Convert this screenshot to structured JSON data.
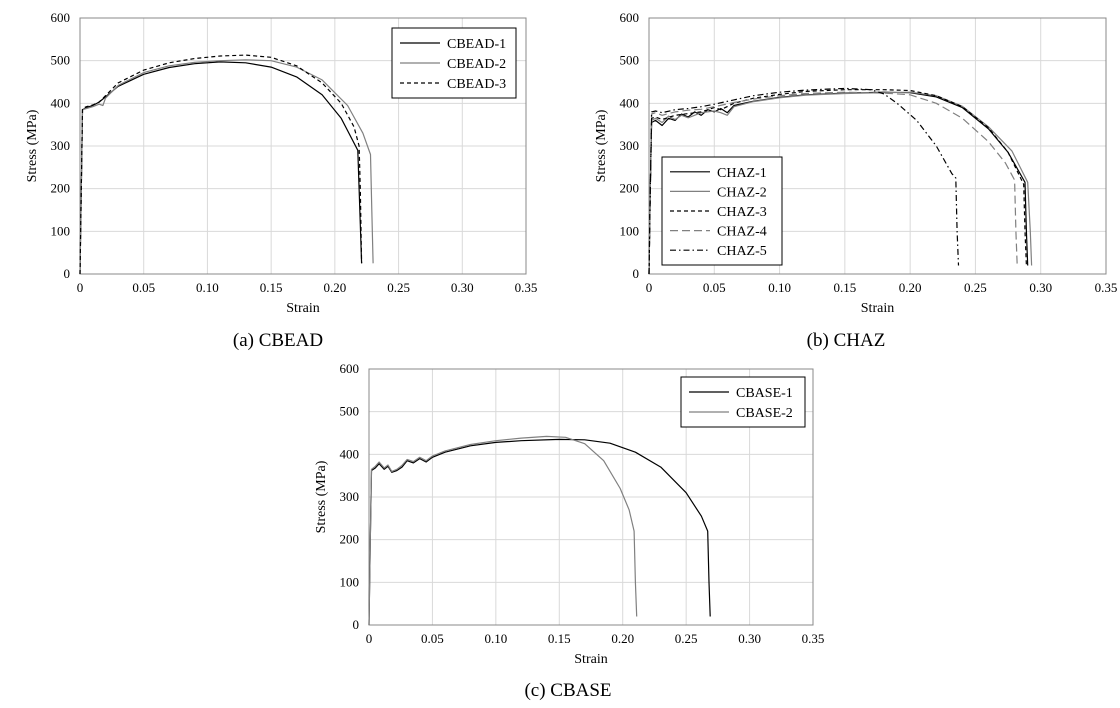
{
  "chart_data": [
    {
      "type": "line",
      "caption": "(a) CBEAD",
      "xlabel": "Strain",
      "ylabel": "Stress (MPa)",
      "xlim": [
        0,
        0.35
      ],
      "ylim": [
        0,
        600
      ],
      "xticks": [
        "0",
        "0.05",
        "0.10",
        "0.15",
        "0.20",
        "0.25",
        "0.30",
        "0.35"
      ],
      "yticks": [
        "0",
        "100",
        "200",
        "300",
        "400",
        "500",
        "600"
      ],
      "grid": true,
      "legend": "top-right",
      "series": [
        {
          "name": "CBEAD-1",
          "color": "#000000",
          "dash": "solid",
          "points": [
            [
              0,
              0
            ],
            [
              0.001,
              200
            ],
            [
              0.002,
              385
            ],
            [
              0.005,
              390
            ],
            [
              0.01,
              395
            ],
            [
              0.015,
              403
            ],
            [
              0.02,
              415
            ],
            [
              0.03,
              440
            ],
            [
              0.05,
              468
            ],
            [
              0.07,
              484
            ],
            [
              0.09,
              493
            ],
            [
              0.11,
              497
            ],
            [
              0.13,
              495
            ],
            [
              0.15,
              485
            ],
            [
              0.17,
              462
            ],
            [
              0.19,
              420
            ],
            [
              0.205,
              365
            ],
            [
              0.218,
              290
            ],
            [
              0.219,
              200
            ],
            [
              0.221,
              25
            ]
          ]
        },
        {
          "name": "CBEAD-2",
          "color": "#808080",
          "dash": "solid",
          "points": [
            [
              0,
              0
            ],
            [
              0.001,
              200
            ],
            [
              0.002,
              385
            ],
            [
              0.005,
              388
            ],
            [
              0.01,
              392
            ],
            [
              0.015,
              398
            ],
            [
              0.018,
              395
            ],
            [
              0.02,
              412
            ],
            [
              0.03,
              442
            ],
            [
              0.05,
              472
            ],
            [
              0.07,
              488
            ],
            [
              0.09,
              496
            ],
            [
              0.11,
              500
            ],
            [
              0.13,
              502
            ],
            [
              0.15,
              500
            ],
            [
              0.17,
              485
            ],
            [
              0.19,
              455
            ],
            [
              0.21,
              395
            ],
            [
              0.222,
              330
            ],
            [
              0.228,
              280
            ],
            [
              0.229,
              150
            ],
            [
              0.23,
              25
            ]
          ]
        },
        {
          "name": "CBEAD-3",
          "color": "#000000",
          "dash": "4,3",
          "points": [
            [
              0,
              0
            ],
            [
              0.001,
              200
            ],
            [
              0.002,
              388
            ],
            [
              0.005,
              392
            ],
            [
              0.01,
              396
            ],
            [
              0.015,
              403
            ],
            [
              0.02,
              418
            ],
            [
              0.03,
              448
            ],
            [
              0.05,
              478
            ],
            [
              0.07,
              495
            ],
            [
              0.09,
              505
            ],
            [
              0.11,
              511
            ],
            [
              0.13,
              513
            ],
            [
              0.15,
              508
            ],
            [
              0.17,
              488
            ],
            [
              0.19,
              448
            ],
            [
              0.205,
              400
            ],
            [
              0.215,
              345
            ],
            [
              0.219,
              300
            ],
            [
              0.22,
              200
            ],
            [
              0.221,
              25
            ]
          ]
        }
      ]
    },
    {
      "type": "line",
      "caption": "(b) CHAZ",
      "xlabel": "Strain",
      "ylabel": "Stress (MPa)",
      "xlim": [
        0,
        0.35
      ],
      "ylim": [
        0,
        600
      ],
      "xticks": [
        "0",
        "0.05",
        "0.10",
        "0.15",
        "0.20",
        "0.25",
        "0.30",
        "0.35"
      ],
      "yticks": [
        "0",
        "100",
        "200",
        "300",
        "400",
        "500",
        "600"
      ],
      "grid": true,
      "legend": "bottom-left",
      "series": [
        {
          "name": "CHAZ-1",
          "color": "#000000",
          "dash": "solid",
          "points": [
            [
              0,
              0
            ],
            [
              0.001,
              200
            ],
            [
              0.002,
              355
            ],
            [
              0.005,
              360
            ],
            [
              0.01,
              348
            ],
            [
              0.015,
              365
            ],
            [
              0.02,
              360
            ],
            [
              0.025,
              375
            ],
            [
              0.03,
              368
            ],
            [
              0.035,
              380
            ],
            [
              0.04,
              372
            ],
            [
              0.045,
              385
            ],
            [
              0.05,
              380
            ],
            [
              0.055,
              388
            ],
            [
              0.06,
              378
            ],
            [
              0.065,
              395
            ],
            [
              0.08,
              405
            ],
            [
              0.1,
              414
            ],
            [
              0.12,
              420
            ],
            [
              0.15,
              424
            ],
            [
              0.18,
              426
            ],
            [
              0.2,
              425
            ],
            [
              0.22,
              415
            ],
            [
              0.24,
              390
            ],
            [
              0.26,
              340
            ],
            [
              0.275,
              285
            ],
            [
              0.288,
              215
            ],
            [
              0.289,
              100
            ],
            [
              0.29,
              20
            ]
          ]
        },
        {
          "name": "CHAZ-2",
          "color": "#808080",
          "dash": "solid",
          "points": [
            [
              0,
              0
            ],
            [
              0.001,
              200
            ],
            [
              0.002,
              360
            ],
            [
              0.005,
              365
            ],
            [
              0.01,
              355
            ],
            [
              0.015,
              370
            ],
            [
              0.02,
              362
            ],
            [
              0.025,
              372
            ],
            [
              0.03,
              366
            ],
            [
              0.04,
              378
            ],
            [
              0.05,
              382
            ],
            [
              0.055,
              378
            ],
            [
              0.06,
              372
            ],
            [
              0.065,
              392
            ],
            [
              0.08,
              404
            ],
            [
              0.1,
              413
            ],
            [
              0.12,
              419
            ],
            [
              0.15,
              423
            ],
            [
              0.18,
              425
            ],
            [
              0.2,
              426
            ],
            [
              0.22,
              418
            ],
            [
              0.24,
              393
            ],
            [
              0.26,
              345
            ],
            [
              0.278,
              288
            ],
            [
              0.29,
              215
            ],
            [
              0.292,
              100
            ],
            [
              0.293,
              20
            ]
          ]
        },
        {
          "name": "CHAZ-3",
          "color": "#000000",
          "dash": "4,3",
          "points": [
            [
              0,
              0
            ],
            [
              0.001,
              200
            ],
            [
              0.002,
              365
            ],
            [
              0.005,
              368
            ],
            [
              0.01,
              362
            ],
            [
              0.02,
              372
            ],
            [
              0.03,
              376
            ],
            [
              0.04,
              380
            ],
            [
              0.05,
              390
            ],
            [
              0.055,
              385
            ],
            [
              0.065,
              400
            ],
            [
              0.08,
              412
            ],
            [
              0.1,
              421
            ],
            [
              0.12,
              428
            ],
            [
              0.15,
              432
            ],
            [
              0.18,
              432
            ],
            [
              0.2,
              430
            ],
            [
              0.22,
              418
            ],
            [
              0.24,
              392
            ],
            [
              0.26,
              343
            ],
            [
              0.275,
              285
            ],
            [
              0.287,
              210
            ],
            [
              0.288,
              100
            ],
            [
              0.289,
              20
            ]
          ]
        },
        {
          "name": "CHAZ-4",
          "color": "#808080",
          "dash": "8,4",
          "points": [
            [
              0,
              0
            ],
            [
              0.001,
              200
            ],
            [
              0.002,
              375
            ],
            [
              0.005,
              378
            ],
            [
              0.01,
              372
            ],
            [
              0.02,
              380
            ],
            [
              0.03,
              384
            ],
            [
              0.04,
              386
            ],
            [
              0.05,
              392
            ],
            [
              0.065,
              402
            ],
            [
              0.08,
              410
            ],
            [
              0.1,
              418
            ],
            [
              0.12,
              423
            ],
            [
              0.15,
              426
            ],
            [
              0.18,
              424
            ],
            [
              0.2,
              420
            ],
            [
              0.22,
              400
            ],
            [
              0.24,
              365
            ],
            [
              0.26,
              310
            ],
            [
              0.273,
              260
            ],
            [
              0.28,
              220
            ],
            [
              0.281,
              100
            ],
            [
              0.282,
              20
            ]
          ]
        },
        {
          "name": "CHAZ-5",
          "color": "#000000",
          "dash": "6,3,1.5,3",
          "points": [
            [
              0,
              0
            ],
            [
              0.001,
              200
            ],
            [
              0.002,
              380
            ],
            [
              0.005,
              382
            ],
            [
              0.01,
              378
            ],
            [
              0.02,
              385
            ],
            [
              0.03,
              388
            ],
            [
              0.04,
              392
            ],
            [
              0.05,
              398
            ],
            [
              0.065,
              408
            ],
            [
              0.08,
              418
            ],
            [
              0.1,
              426
            ],
            [
              0.12,
              431
            ],
            [
              0.15,
              435
            ],
            [
              0.17,
              432
            ],
            [
              0.18,
              422
            ],
            [
              0.19,
              400
            ],
            [
              0.205,
              360
            ],
            [
              0.22,
              300
            ],
            [
              0.232,
              235
            ],
            [
              0.235,
              225
            ],
            [
              0.236,
              100
            ],
            [
              0.237,
              20
            ]
          ]
        }
      ]
    },
    {
      "type": "line",
      "caption": "(c) CBASE",
      "xlabel": "Strain",
      "ylabel": "Stress (MPa)",
      "xlim": [
        0,
        0.35
      ],
      "ylim": [
        0,
        600
      ],
      "xticks": [
        "0",
        "0.05",
        "0.10",
        "0.15",
        "0.20",
        "0.25",
        "0.30",
        "0.35"
      ],
      "yticks": [
        "0",
        "100",
        "200",
        "300",
        "400",
        "500",
        "600"
      ],
      "grid": true,
      "legend": "top-right",
      "series": [
        {
          "name": "CBASE-1",
          "color": "#000000",
          "dash": "solid",
          "points": [
            [
              0,
              0
            ],
            [
              0.001,
              200
            ],
            [
              0.002,
              362
            ],
            [
              0.005,
              368
            ],
            [
              0.008,
              378
            ],
            [
              0.012,
              365
            ],
            [
              0.015,
              372
            ],
            [
              0.018,
              358
            ],
            [
              0.022,
              362
            ],
            [
              0.026,
              370
            ],
            [
              0.03,
              385
            ],
            [
              0.035,
              380
            ],
            [
              0.04,
              390
            ],
            [
              0.045,
              382
            ],
            [
              0.05,
              393
            ],
            [
              0.06,
              405
            ],
            [
              0.08,
              420
            ],
            [
              0.1,
              428
            ],
            [
              0.12,
              432
            ],
            [
              0.15,
              435
            ],
            [
              0.17,
              434
            ],
            [
              0.19,
              426
            ],
            [
              0.21,
              405
            ],
            [
              0.23,
              370
            ],
            [
              0.25,
              310
            ],
            [
              0.262,
              255
            ],
            [
              0.267,
              220
            ],
            [
              0.268,
              100
            ],
            [
              0.269,
              20
            ]
          ]
        },
        {
          "name": "CBASE-2",
          "color": "#808080",
          "dash": "solid",
          "points": [
            [
              0,
              0
            ],
            [
              0.001,
              200
            ],
            [
              0.002,
              365
            ],
            [
              0.005,
              372
            ],
            [
              0.008,
              382
            ],
            [
              0.012,
              368
            ],
            [
              0.015,
              375
            ],
            [
              0.018,
              360
            ],
            [
              0.022,
              365
            ],
            [
              0.026,
              374
            ],
            [
              0.03,
              388
            ],
            [
              0.035,
              383
            ],
            [
              0.04,
              393
            ],
            [
              0.045,
              385
            ],
            [
              0.05,
              396
            ],
            [
              0.06,
              408
            ],
            [
              0.08,
              423
            ],
            [
              0.1,
              432
            ],
            [
              0.12,
              438
            ],
            [
              0.14,
              442
            ],
            [
              0.155,
              440
            ],
            [
              0.17,
              425
            ],
            [
              0.185,
              385
            ],
            [
              0.198,
              320
            ],
            [
              0.205,
              270
            ],
            [
              0.209,
              220
            ],
            [
              0.21,
              100
            ],
            [
              0.211,
              20
            ]
          ]
        }
      ]
    }
  ]
}
